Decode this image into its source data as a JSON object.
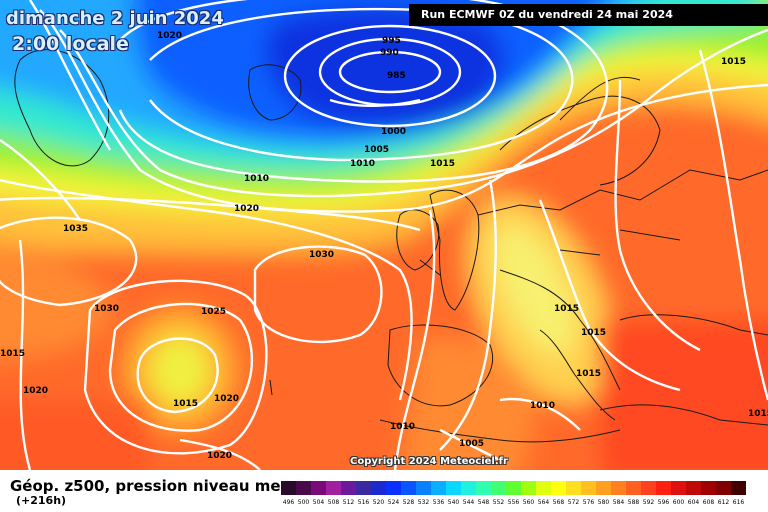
{
  "header": {
    "date_line": "dimanche 2 juin 2024",
    "time_line": "2:00 locale",
    "run_label": "Run ECMWF 0Z du vendredi 24 mai 2024"
  },
  "footer": {
    "title": "Géop. z500, pression niveau mer",
    "subtitle": "(+216h)",
    "copyright": "Copyright 2024 Meteociel.fr"
  },
  "pressure_labels": [
    "1020",
    "995",
    "990",
    "985",
    "1015",
    "1000",
    "1005",
    "1010",
    "1015",
    "1010",
    "1020",
    "1035",
    "1030",
    "1030",
    "1025",
    "1015",
    "1015",
    "1015",
    "1015",
    "1020",
    "1015",
    "1010",
    "1010",
    "1005",
    "1020",
    "1015",
    "1020"
  ],
  "legend": {
    "values": [
      "496",
      "500",
      "504",
      "508",
      "512",
      "516",
      "520",
      "524",
      "528",
      "532",
      "536",
      "540",
      "544",
      "548",
      "552",
      "556",
      "560",
      "564",
      "568",
      "572",
      "576",
      "580",
      "584",
      "588",
      "592",
      "596",
      "600",
      "604",
      "608",
      "612",
      "616"
    ],
    "colors": [
      "#2a0a2a",
      "#4a0a4a",
      "#7a0a7a",
      "#a020a0",
      "#6a1a9a",
      "#3a2aa0",
      "#1a2ad0",
      "#0a30ff",
      "#0a55ff",
      "#0a80ff",
      "#0ab0ff",
      "#0ad8ff",
      "#20f0e0",
      "#30ffb0",
      "#40ff70",
      "#60ff30",
      "#a0ff10",
      "#e0ff10",
      "#ffff10",
      "#ffe020",
      "#ffc020",
      "#ffa020",
      "#ff8020",
      "#ff6020",
      "#ff4020",
      "#ff2010",
      "#e01010",
      "#c00808",
      "#a00000",
      "#800000",
      "#400000"
    ]
  }
}
